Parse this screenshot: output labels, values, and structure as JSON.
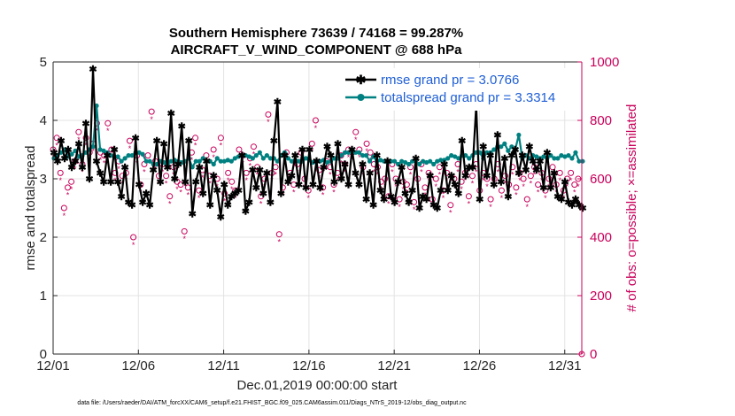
{
  "chart_data": {
    "type": "line",
    "title_line1": "Southern Hemisphere 73639 / 74168 = 99.287%",
    "title_line2": "AIRCRAFT_V_WIND_COMPONENT @ 688 hPa",
    "xlabel": "Dec.01,2019 00:00:00 start",
    "ylabel": "rmse and totalspread",
    "y2label": "# of obs: o=possible; ×=assimilated",
    "xlim": [
      0,
      31
    ],
    "ylim": [
      0,
      5
    ],
    "y2lim": [
      0,
      1000
    ],
    "x_ticks": [
      0,
      5,
      10,
      15,
      20,
      25,
      30
    ],
    "x_tick_labels": [
      "12/01",
      "12/06",
      "12/11",
      "12/16",
      "12/21",
      "12/26",
      "12/31"
    ],
    "y_ticks": [
      0,
      1,
      2,
      3,
      4,
      5
    ],
    "y_tick_labels": [
      "0",
      "1",
      "2",
      "3",
      "4",
      "5"
    ],
    "y2_ticks": [
      0,
      200,
      400,
      600,
      800,
      1000
    ],
    "y2_tick_labels": [
      "0",
      "200",
      "400",
      "600",
      "800",
      "1000"
    ],
    "grid": true,
    "legend_position": "top-right",
    "series": [
      {
        "name": "rmse grand pr = 3.0766",
        "color": "#000000",
        "axis": "left",
        "marker": "asterisk",
        "values": [
          3.45,
          3.3,
          3.65,
          3.35,
          3.5,
          3.2,
          3.3,
          3.6,
          3.2,
          3.95,
          3.0,
          4.88,
          3.3,
          3.1,
          2.95,
          3.4,
          2.95,
          3.5,
          2.95,
          2.7,
          3.2,
          2.6,
          2.55,
          3.7,
          2.9,
          2.6,
          2.75,
          2.55,
          3.15,
          3.65,
          2.95,
          3.6,
          3.2,
          4.12,
          3.0,
          3.25,
          3.9,
          2.95,
          3.65,
          2.4,
          2.95,
          3.2,
          2.75,
          3.3,
          2.55,
          3.05,
          2.8,
          2.35,
          2.9,
          2.55,
          2.7,
          2.75,
          2.8,
          3.4,
          2.45,
          2.6,
          3.15,
          2.85,
          3.15,
          2.75,
          3.1,
          2.6,
          3.65,
          4.32,
          2.75,
          3.4,
          2.95,
          3.05,
          3.4,
          2.9,
          3.5,
          2.85,
          3.5,
          2.9,
          3.3,
          2.85,
          3.2,
          3.55,
          3.4,
          2.95,
          3.6,
          3.0,
          3.25,
          2.9,
          3.5,
          3.1,
          2.9,
          3.25,
          2.65,
          3.1,
          2.55,
          3.4,
          2.8,
          2.65,
          3.3,
          2.7,
          2.6,
          2.95,
          3.2,
          2.75,
          2.6,
          2.8,
          3.35,
          2.5,
          2.7,
          2.65,
          3.05,
          2.55,
          2.5,
          2.8,
          3.25,
          2.8,
          3.05,
          2.9,
          2.75,
          3.65,
          3.05,
          3.2,
          3.2,
          4.25,
          2.65,
          3.55,
          3.05,
          3.4,
          2.9,
          3.75,
          2.95,
          3.35,
          2.7,
          3.4,
          3.5,
          3.1,
          3.4,
          3.15,
          3.55,
          3.3,
          3.15,
          3.3,
          2.85,
          3.45,
          2.85,
          3.1,
          2.7,
          2.65,
          2.95,
          2.6,
          2.55,
          2.65,
          2.55,
          2.5
        ]
      },
      {
        "name": "totalspread grand pr = 3.3314",
        "color": "#008080",
        "axis": "left",
        "marker": "dot",
        "values": [
          3.35,
          3.4,
          3.45,
          3.5,
          3.38,
          3.42,
          3.48,
          3.38,
          3.4,
          3.45,
          3.5,
          3.55,
          4.25,
          3.5,
          3.48,
          3.45,
          3.4,
          3.38,
          3.38,
          3.3,
          3.35,
          3.4,
          3.4,
          3.45,
          3.45,
          3.42,
          3.3,
          3.3,
          3.25,
          3.25,
          3.3,
          3.28,
          3.25,
          3.3,
          3.32,
          3.3,
          3.28,
          3.3,
          3.35,
          3.2,
          3.3,
          3.3,
          3.35,
          3.3,
          3.3,
          3.25,
          3.35,
          3.3,
          3.3,
          3.32,
          3.3,
          3.35,
          3.38,
          3.4,
          3.4,
          3.38,
          3.35,
          3.4,
          3.45,
          3.35,
          3.4,
          3.35,
          3.35,
          3.3,
          3.4,
          3.45,
          3.35,
          3.3,
          3.32,
          3.3,
          3.3,
          3.35,
          3.32,
          3.28,
          3.3,
          3.3,
          3.32,
          3.28,
          3.3,
          3.35,
          3.35,
          3.4,
          3.45,
          3.45,
          3.5,
          3.45,
          3.45,
          3.4,
          3.4,
          3.3,
          3.38,
          3.3,
          3.32,
          3.3,
          3.28,
          3.3,
          3.3,
          3.25,
          3.3,
          3.28,
          3.25,
          3.3,
          3.3,
          3.25,
          3.3,
          3.28,
          3.3,
          3.25,
          3.3,
          3.32,
          3.32,
          3.35,
          3.4,
          3.38,
          3.35,
          3.4,
          3.4,
          3.35,
          3.4,
          3.45,
          3.45,
          3.35,
          3.45,
          3.45,
          3.5,
          3.55,
          3.55,
          3.6,
          3.48,
          3.55,
          3.5,
          3.75,
          3.35,
          3.4,
          3.35,
          3.4,
          3.38,
          3.35,
          3.38,
          3.35,
          3.4,
          3.35,
          3.35,
          3.4,
          3.38,
          3.4,
          3.35,
          3.45,
          3.3,
          3.3
        ]
      },
      {
        "name": "# obs possible",
        "color": "#c8005a",
        "axis": "right",
        "marker": "circle",
        "values": [
          700,
          740,
          620,
          500,
          570,
          590,
          660,
          760,
          650,
          740,
          690,
          720,
          790,
          690,
          680,
          790,
          700,
          620,
          660,
          610,
          620,
          730,
          400,
          680,
          580,
          650,
          680,
          830,
          660,
          610,
          650,
          610,
          540,
          640,
          590,
          580,
          420,
          570,
          690,
          740,
          560,
          630,
          680,
          610,
          700,
          600,
          740,
          550,
          620,
          590,
          560,
          700,
          680,
          620,
          670,
          710,
          640,
          540,
          600,
          820,
          620,
          640,
          410,
          570,
          690,
          620,
          580,
          650,
          690,
          600,
          560,
          720,
          800,
          630,
          570,
          660,
          640,
          580,
          620,
          680,
          650,
          700,
          690,
          760,
          700,
          640,
          720,
          690,
          650,
          640,
          590,
          600,
          540,
          650,
          600,
          530,
          590,
          580,
          640,
          520,
          600,
          650,
          570,
          620,
          530,
          600,
          640,
          560,
          620,
          510,
          600,
          650,
          590,
          620,
          540,
          610,
          650,
          560,
          620,
          600,
          530,
          600,
          650,
          560,
          610,
          580,
          640,
          570,
          620,
          600,
          530,
          610,
          640,
          580,
          620,
          560,
          600,
          640,
          580,
          620,
          560,
          600,
          620,
          580,
          600,
          0
        ]
      }
    ]
  },
  "footer": "data file: /Users/raeder/DAI/ATM_forcXX/CAM6_setup/f.e21.FHIST_BGC.f09_025.CAM6assim.011/Diags_NTrS_2019-12/obs_diag_output.nc"
}
